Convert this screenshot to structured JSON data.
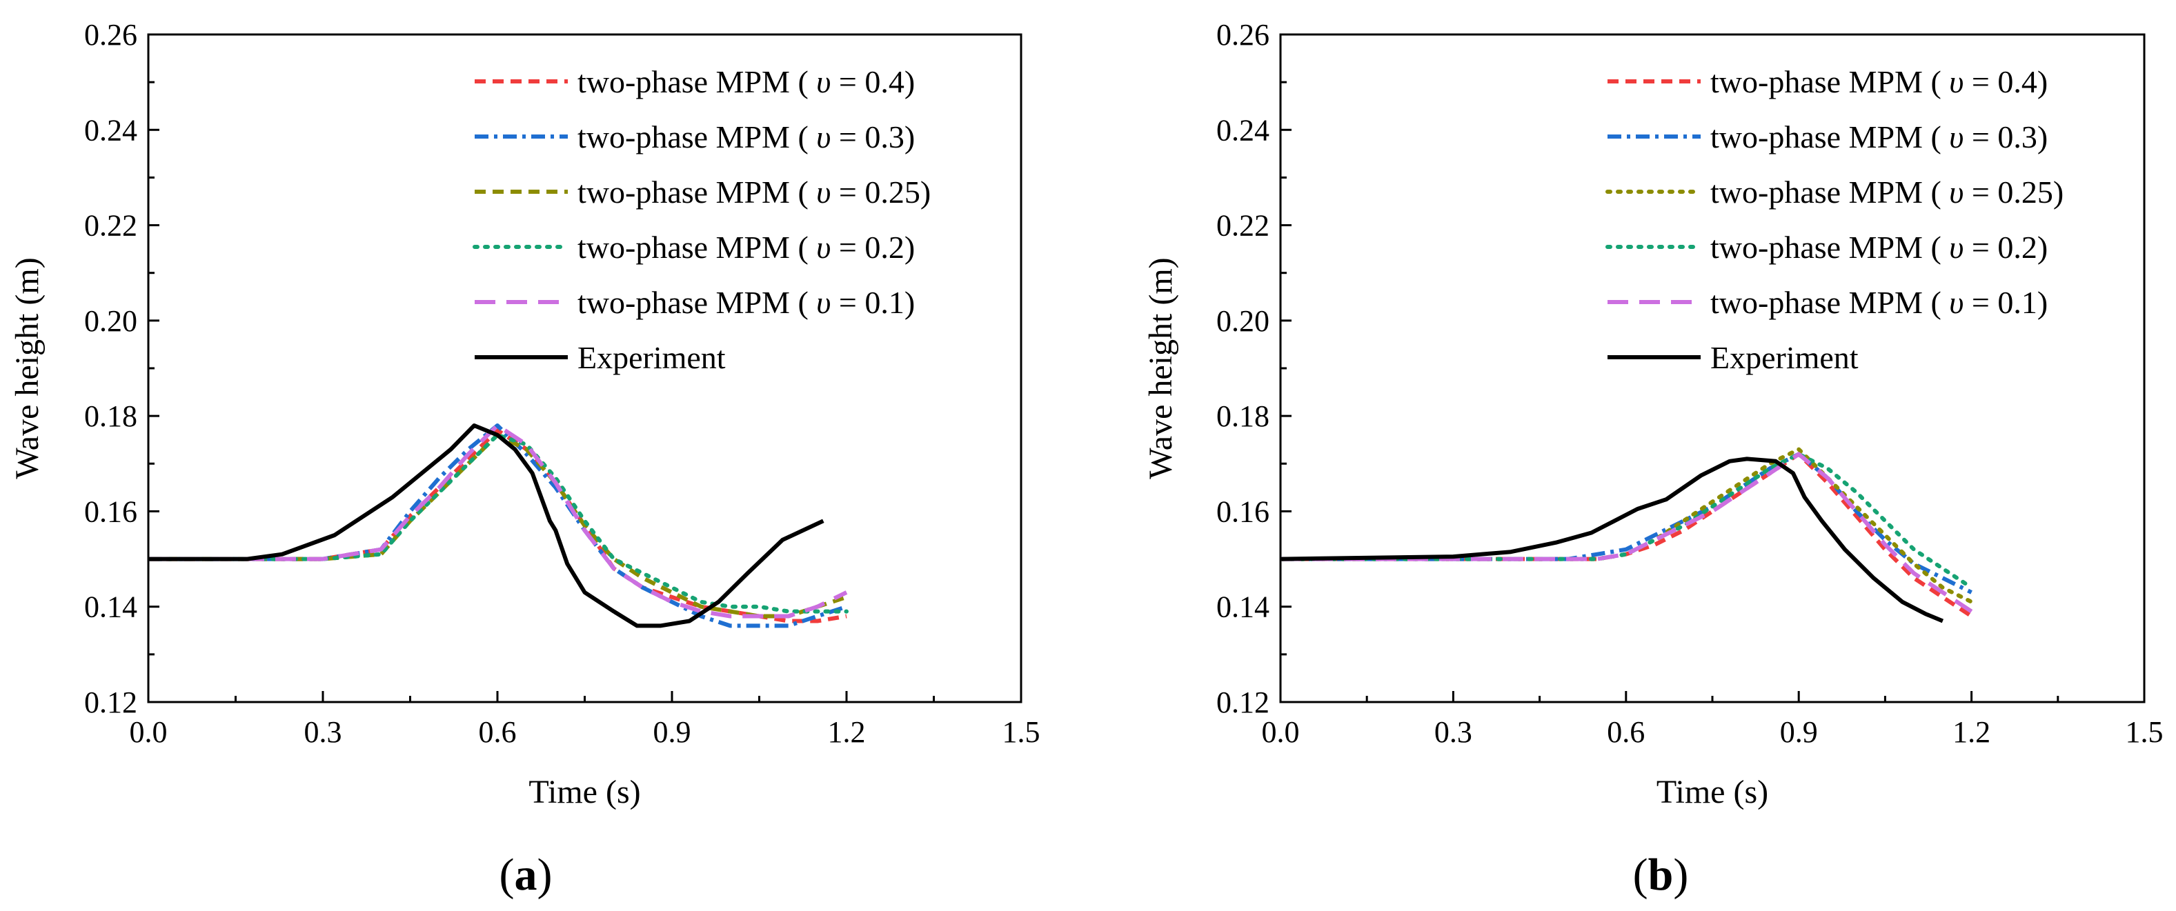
{
  "chart_data": [
    {
      "type": "line",
      "panel_label": {
        "open": "(",
        "letter": "a",
        "close": ")"
      },
      "xlabel": "Time (s)",
      "ylabel": "Wave height (m)",
      "xlim": [
        0.0,
        1.5
      ],
      "ylim": [
        0.12,
        0.26
      ],
      "xticks": [
        "0.0",
        "0.3",
        "0.6",
        "0.9",
        "1.2",
        "1.5"
      ],
      "yticks": [
        "0.12",
        "0.14",
        "0.16",
        "0.18",
        "0.20",
        "0.22",
        "0.24",
        "0.26"
      ],
      "grid": false,
      "legend_position": "top-right",
      "series": [
        {
          "name": "two-phase MPM (υ = 0.4)",
          "label_prefix": "two-phase MPM (",
          "nu_value": "0.4",
          "color": "#f03c3c",
          "style": "dash",
          "x": [
            0.0,
            0.3,
            0.4,
            0.45,
            0.5,
            0.55,
            0.6,
            0.65,
            0.7,
            0.75,
            0.8,
            0.85,
            0.9,
            0.95,
            1.0,
            1.05,
            1.1,
            1.15,
            1.2
          ],
          "y": [
            0.15,
            0.15,
            0.152,
            0.159,
            0.165,
            0.171,
            0.177,
            0.173,
            0.166,
            0.157,
            0.148,
            0.144,
            0.142,
            0.14,
            0.139,
            0.138,
            0.137,
            0.137,
            0.138
          ]
        },
        {
          "name": "two-phase MPM (υ = 0.3)",
          "label_prefix": "two-phase MPM (",
          "nu_value": "0.3",
          "color": "#1f6fd1",
          "style": "dashdot",
          "x": [
            0.0,
            0.3,
            0.4,
            0.45,
            0.5,
            0.55,
            0.6,
            0.65,
            0.7,
            0.75,
            0.8,
            0.85,
            0.9,
            0.95,
            1.0,
            1.05,
            1.1,
            1.15,
            1.2
          ],
          "y": [
            0.15,
            0.15,
            0.152,
            0.16,
            0.167,
            0.173,
            0.178,
            0.172,
            0.165,
            0.156,
            0.148,
            0.144,
            0.141,
            0.138,
            0.136,
            0.136,
            0.136,
            0.138,
            0.14
          ]
        },
        {
          "name": "two-phase MPM (υ = 0.25)",
          "label_prefix": "two-phase MPM (",
          "nu_value": "0.25",
          "color": "#8c8c00",
          "style": "dash",
          "x": [
            0.0,
            0.3,
            0.4,
            0.45,
            0.5,
            0.55,
            0.6,
            0.65,
            0.7,
            0.75,
            0.8,
            0.85,
            0.9,
            0.95,
            1.0,
            1.05,
            1.1,
            1.15,
            1.2
          ],
          "y": [
            0.15,
            0.15,
            0.151,
            0.158,
            0.164,
            0.17,
            0.176,
            0.173,
            0.166,
            0.157,
            0.15,
            0.146,
            0.143,
            0.14,
            0.139,
            0.138,
            0.138,
            0.14,
            0.142
          ]
        },
        {
          "name": "two-phase MPM (υ = 0.2)",
          "label_prefix": "two-phase MPM (",
          "nu_value": "0.2",
          "color": "#16a373",
          "style": "dot",
          "x": [
            0.0,
            0.3,
            0.4,
            0.45,
            0.5,
            0.55,
            0.6,
            0.65,
            0.7,
            0.75,
            0.8,
            0.85,
            0.9,
            0.95,
            1.0,
            1.05,
            1.1,
            1.15,
            1.2
          ],
          "y": [
            0.15,
            0.15,
            0.151,
            0.158,
            0.164,
            0.17,
            0.176,
            0.174,
            0.167,
            0.158,
            0.15,
            0.147,
            0.144,
            0.141,
            0.14,
            0.14,
            0.139,
            0.139,
            0.139
          ]
        },
        {
          "name": "two-phase MPM (υ = 0.1)",
          "label_prefix": "two-phase MPM (",
          "nu_value": "0.1",
          "color": "#cc6fe0",
          "style": "longdash",
          "x": [
            0.0,
            0.3,
            0.4,
            0.45,
            0.5,
            0.55,
            0.6,
            0.65,
            0.7,
            0.75,
            0.8,
            0.85,
            0.9,
            0.95,
            1.0,
            1.05,
            1.1,
            1.15,
            1.2
          ],
          "y": [
            0.15,
            0.15,
            0.152,
            0.159,
            0.165,
            0.172,
            0.178,
            0.174,
            0.166,
            0.156,
            0.148,
            0.144,
            0.141,
            0.139,
            0.138,
            0.138,
            0.138,
            0.14,
            0.143
          ]
        },
        {
          "name": "Experiment",
          "label_prefix": "",
          "nu_value": "",
          "color": "#000000",
          "style": "solid",
          "x": [
            0.0,
            0.17,
            0.23,
            0.32,
            0.42,
            0.48,
            0.52,
            0.56,
            0.6,
            0.63,
            0.66,
            0.69,
            0.7,
            0.72,
            0.75,
            0.8,
            0.84,
            0.88,
            0.93,
            0.98,
            1.03,
            1.09,
            1.16
          ],
          "y": [
            0.15,
            0.15,
            0.151,
            0.155,
            0.163,
            0.169,
            0.173,
            0.178,
            0.176,
            0.173,
            0.168,
            0.158,
            0.156,
            0.149,
            0.143,
            0.139,
            0.136,
            0.136,
            0.137,
            0.141,
            0.147,
            0.154,
            0.158
          ]
        }
      ]
    },
    {
      "type": "line",
      "panel_label": {
        "open": "(",
        "letter": "b",
        "close": ")"
      },
      "xlabel": "Time (s)",
      "ylabel": "Wave height (m)",
      "xlim": [
        0.0,
        1.5
      ],
      "ylim": [
        0.12,
        0.26
      ],
      "xticks": [
        "0.0",
        "0.3",
        "0.6",
        "0.9",
        "1.2",
        "1.5"
      ],
      "yticks": [
        "0.12",
        "0.14",
        "0.16",
        "0.18",
        "0.20",
        "0.22",
        "0.24",
        "0.26"
      ],
      "grid": false,
      "legend_position": "top-right",
      "series": [
        {
          "name": "two-phase MPM (υ = 0.4)",
          "label_prefix": "two-phase MPM (",
          "nu_value": "0.4",
          "color": "#f03c3c",
          "style": "dash",
          "x": [
            0.0,
            0.4,
            0.5,
            0.55,
            0.6,
            0.65,
            0.7,
            0.75,
            0.8,
            0.85,
            0.9,
            0.95,
            1.0,
            1.05,
            1.1,
            1.15,
            1.2
          ],
          "y": [
            0.15,
            0.15,
            0.15,
            0.15,
            0.151,
            0.153,
            0.156,
            0.16,
            0.164,
            0.168,
            0.172,
            0.166,
            0.159,
            0.152,
            0.146,
            0.142,
            0.138
          ]
        },
        {
          "name": "two-phase MPM (υ = 0.3)",
          "label_prefix": "two-phase MPM (",
          "nu_value": "0.3",
          "color": "#1f6fd1",
          "style": "dashdot",
          "x": [
            0.0,
            0.4,
            0.5,
            0.55,
            0.6,
            0.65,
            0.7,
            0.75,
            0.8,
            0.85,
            0.9,
            0.95,
            1.0,
            1.05,
            1.1,
            1.15,
            1.2
          ],
          "y": [
            0.15,
            0.15,
            0.15,
            0.151,
            0.152,
            0.155,
            0.158,
            0.161,
            0.165,
            0.169,
            0.172,
            0.167,
            0.16,
            0.154,
            0.149,
            0.146,
            0.143
          ]
        },
        {
          "name": "two-phase MPM (υ = 0.25)",
          "label_prefix": "two-phase MPM (",
          "nu_value": "0.25",
          "color": "#8c8c00",
          "style": "dot",
          "x": [
            0.0,
            0.4,
            0.5,
            0.55,
            0.6,
            0.65,
            0.7,
            0.75,
            0.8,
            0.85,
            0.9,
            0.95,
            1.0,
            1.05,
            1.1,
            1.15,
            1.2
          ],
          "y": [
            0.15,
            0.15,
            0.15,
            0.15,
            0.151,
            0.154,
            0.158,
            0.162,
            0.166,
            0.17,
            0.173,
            0.167,
            0.161,
            0.155,
            0.149,
            0.144,
            0.141
          ]
        },
        {
          "name": "two-phase MPM (υ = 0.2)",
          "label_prefix": "two-phase MPM (",
          "nu_value": "0.2",
          "color": "#16a373",
          "style": "dot",
          "x": [
            0.0,
            0.4,
            0.5,
            0.55,
            0.6,
            0.65,
            0.7,
            0.75,
            0.8,
            0.85,
            0.9,
            0.95,
            1.0,
            1.05,
            1.1,
            1.15,
            1.2
          ],
          "y": [
            0.15,
            0.15,
            0.15,
            0.15,
            0.151,
            0.154,
            0.157,
            0.161,
            0.165,
            0.169,
            0.172,
            0.169,
            0.164,
            0.158,
            0.152,
            0.148,
            0.144
          ]
        },
        {
          "name": "two-phase MPM (υ = 0.1)",
          "label_prefix": "two-phase MPM (",
          "nu_value": "0.1",
          "color": "#cc6fe0",
          "style": "longdash",
          "x": [
            0.0,
            0.4,
            0.5,
            0.55,
            0.6,
            0.65,
            0.7,
            0.75,
            0.8,
            0.85,
            0.9,
            0.95,
            1.0,
            1.05,
            1.1,
            1.15,
            1.2
          ],
          "y": [
            0.15,
            0.15,
            0.15,
            0.15,
            0.151,
            0.154,
            0.157,
            0.16,
            0.164,
            0.168,
            0.172,
            0.167,
            0.16,
            0.153,
            0.147,
            0.143,
            0.139
          ]
        },
        {
          "name": "Experiment",
          "label_prefix": "",
          "nu_value": "",
          "color": "#000000",
          "style": "solid",
          "x": [
            0.0,
            0.3,
            0.4,
            0.48,
            0.54,
            0.58,
            0.62,
            0.67,
            0.73,
            0.78,
            0.81,
            0.86,
            0.89,
            0.91,
            0.94,
            0.98,
            1.03,
            1.08,
            1.12,
            1.15
          ],
          "y": [
            0.15,
            0.1505,
            0.1515,
            0.1535,
            0.1555,
            0.158,
            0.1605,
            0.1625,
            0.1675,
            0.1705,
            0.171,
            0.1705,
            0.168,
            0.163,
            0.158,
            0.152,
            0.146,
            0.141,
            0.1385,
            0.137
          ]
        }
      ]
    }
  ]
}
